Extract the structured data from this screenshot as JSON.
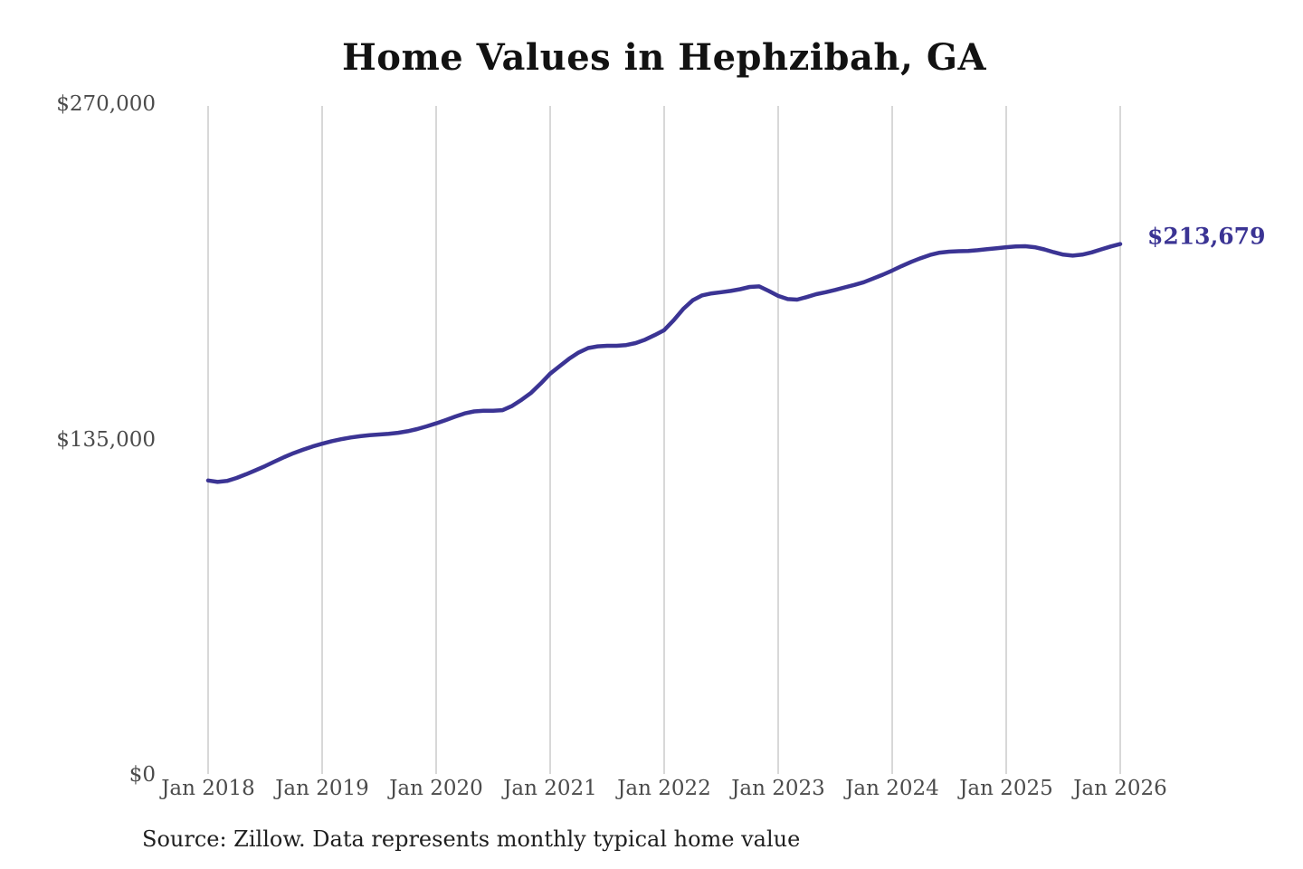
{
  "title": "Home Values in Hephzibah, GA",
  "end_label": "$213,679",
  "source_note": "Source: Zillow. Data represents monthly typical home value",
  "colors": {
    "line": "#3b3494",
    "grid": "#cccccc",
    "tick_text": "#4b4b4b",
    "title_text": "#121212",
    "note_text": "#1f1f1f"
  },
  "chart_data": {
    "type": "line",
    "title": "Home Values in Hephzibah, GA",
    "xlabel": "",
    "ylabel": "",
    "ylim": [
      0,
      270000
    ],
    "grid": "vertical-only",
    "legend": "none",
    "interval": "monthly",
    "x_start": "Jan 2018",
    "x_end": "Jan 2026",
    "x_tick_labels": [
      "Jan 2018",
      "Jan 2019",
      "Jan 2020",
      "Jan 2021",
      "Jan 2022",
      "Jan 2023",
      "Jan 2024",
      "Jan 2025",
      "Jan 2026"
    ],
    "y_ticks": [
      {
        "value": 0,
        "label": "$0"
      },
      {
        "value": 135000,
        "label": "$135,000"
      },
      {
        "value": 270000,
        "label": "$270,000"
      }
    ],
    "end_value": 213679,
    "series": [
      {
        "name": "Typical home value",
        "values": [
          118500,
          117900,
          118300,
          119500,
          121000,
          122600,
          124300,
          126100,
          127900,
          129500,
          130900,
          132200,
          133300,
          134300,
          135100,
          135800,
          136300,
          136700,
          137000,
          137300,
          137700,
          138300,
          139200,
          140300,
          141500,
          142800,
          144200,
          145500,
          146300,
          146600,
          146600,
          146800,
          148500,
          151000,
          153800,
          157500,
          161500,
          164500,
          167500,
          170000,
          171800,
          172500,
          172700,
          172700,
          173000,
          173800,
          175200,
          177000,
          179000,
          183000,
          187500,
          191000,
          193000,
          193800,
          194300,
          194800,
          195500,
          196400,
          196600,
          194800,
          192800,
          191500,
          191300,
          192300,
          193500,
          194300,
          195200,
          196200,
          197200,
          198300,
          199800,
          201300,
          203000,
          204800,
          206500,
          208000,
          209300,
          210200,
          210600,
          210800,
          210900,
          211200,
          211600,
          212000,
          212400,
          212700,
          212800,
          212400,
          211500,
          210400,
          209400,
          209000,
          209400,
          210300,
          211500,
          212700,
          213679
        ]
      }
    ]
  }
}
